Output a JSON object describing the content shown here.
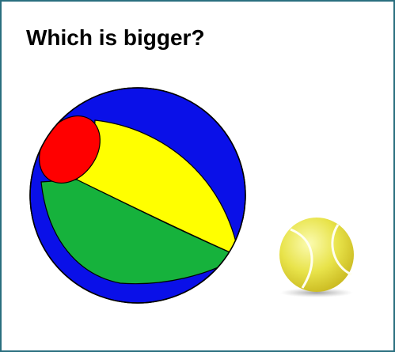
{
  "question": "Which is bigger?"
}
